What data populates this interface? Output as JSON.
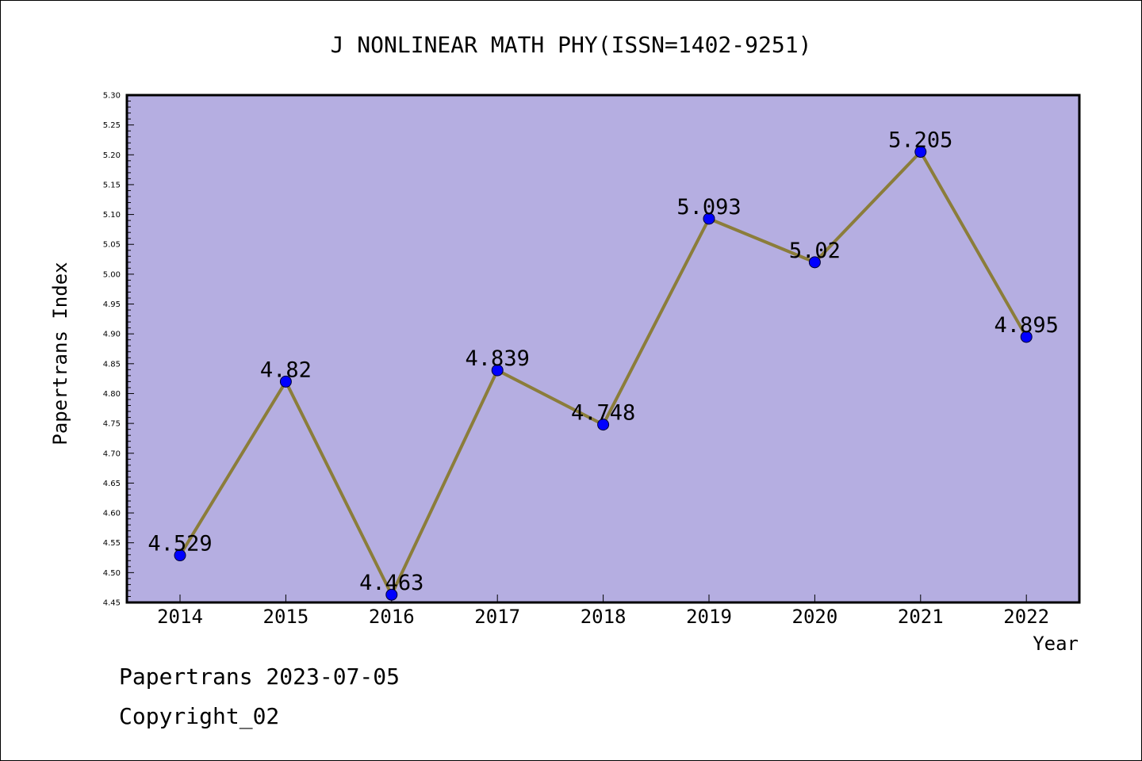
{
  "footer": {
    "line1": "Papertrans 2023-07-05",
    "line2": "Copyright_02"
  },
  "colors": {
    "plot_background": "#b5aee1",
    "line": "#8b7d3a",
    "marker": "#0000ff"
  },
  "chart_data": {
    "type": "line",
    "title": "J NONLINEAR MATH PHY(ISSN=1402-9251)",
    "xlabel": "Year",
    "ylabel": "Papertrans Index",
    "ylim": [
      4.45,
      5.3
    ],
    "y_ticks": [
      "4.45",
      "4.50",
      "4.55",
      "4.60",
      "4.65",
      "4.70",
      "4.75",
      "4.80",
      "4.85",
      "4.90",
      "4.95",
      "5.00",
      "5.05",
      "5.10",
      "5.15",
      "5.20",
      "5.25",
      "5.30"
    ],
    "categories": [
      "2014",
      "2015",
      "2016",
      "2017",
      "2018",
      "2019",
      "2020",
      "2021",
      "2022"
    ],
    "series": [
      {
        "values": [
          4.529,
          4.82,
          4.463,
          4.839,
          4.748,
          5.093,
          5.02,
          5.205,
          4.895
        ],
        "labels": [
          "4.529",
          "4.82",
          "4.463",
          "4.839",
          "4.748",
          "5.093",
          "5.02",
          "5.205",
          "4.895"
        ]
      }
    ],
    "grid": false,
    "legend": "none"
  }
}
